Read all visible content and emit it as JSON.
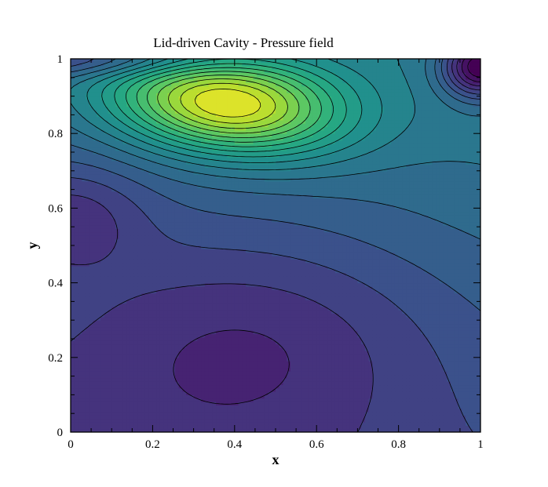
{
  "chart_data": {
    "type": "contour",
    "title": "Lid-driven Cavity - Pressure field",
    "xlabel": "x",
    "ylabel": "y",
    "xlim": [
      0,
      1
    ],
    "ylim": [
      0,
      1
    ],
    "xticks": [
      0,
      0.2,
      0.4,
      0.6,
      0.8,
      1
    ],
    "yticks": [
      0,
      0.2,
      0.4,
      0.6,
      0.8,
      1
    ],
    "xtick_labels": [
      "0",
      "0.2",
      "0.4",
      "0.6",
      "0.8",
      "1"
    ],
    "ytick_labels": [
      "0",
      "0.2",
      "0.4",
      "0.6",
      "0.8",
      "1"
    ],
    "colormap": "viridis",
    "filled": true,
    "contour_lines": true,
    "n_levels": 20,
    "features": [
      {
        "kind": "maximum",
        "x": 0.38,
        "y": 0.88
      },
      {
        "kind": "minimum",
        "x": 0.99,
        "y": 0.97
      },
      {
        "kind": "minimum",
        "x": 0.0,
        "y": 0.62
      }
    ]
  }
}
